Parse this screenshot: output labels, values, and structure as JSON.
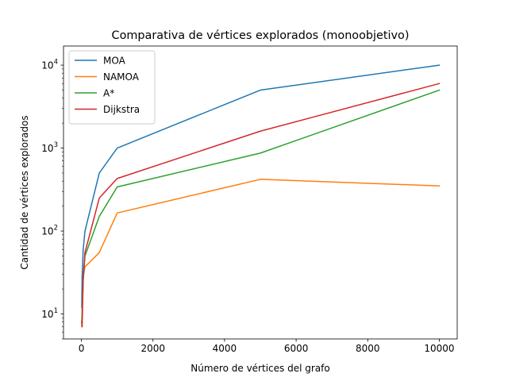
{
  "chart_data": {
    "type": "line",
    "title": "Comparativa de vértices explorados (monoobjetivo)",
    "xlabel": "Número de vértices del grafo",
    "ylabel": "Cantidad de vértices explorados",
    "xlim": [
      -500,
      10500
    ],
    "ylim": [
      5,
      17000
    ],
    "yscale": "log",
    "x_ticks": [
      0,
      2000,
      4000,
      6000,
      8000,
      10000
    ],
    "y_ticks": [
      {
        "value": 10,
        "base": "10",
        "exp": "1"
      },
      {
        "value": 100,
        "base": "10",
        "exp": "2"
      },
      {
        "value": 1000,
        "base": "10",
        "exp": "3"
      },
      {
        "value": 10000,
        "base": "10",
        "exp": "4"
      }
    ],
    "grid": false,
    "legend_position": "top-left",
    "x": [
      10,
      20,
      50,
      100,
      500,
      1000,
      5000,
      10000
    ],
    "series": [
      {
        "name": "MOA",
        "color": "#1f77b4",
        "values": [
          12,
          28,
          60,
          100,
          500,
          1000,
          5000,
          10000
        ]
      },
      {
        "name": "NAMOA",
        "color": "#ff7f0e",
        "values": [
          7,
          11,
          28,
          37,
          55,
          165,
          420,
          350
        ]
      },
      {
        "name": "A*",
        "color": "#2ca02c",
        "values": [
          8,
          10,
          25,
          50,
          150,
          340,
          870,
          5000
        ]
      },
      {
        "name": "Dijkstra",
        "color": "#d62728",
        "values": [
          8,
          7,
          27,
          55,
          250,
          430,
          1600,
          6000
        ]
      }
    ]
  }
}
